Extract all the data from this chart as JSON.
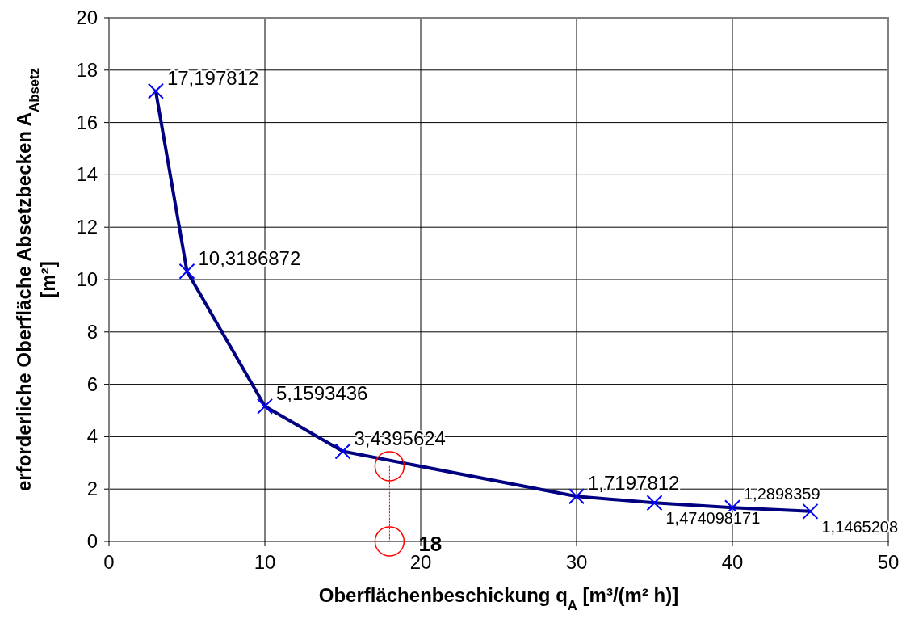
{
  "chart_data": {
    "type": "line",
    "xlabel": "Oberflächenbeschickung q$_{A}$ [m³/(m² h)]",
    "ylabel": "erforderliche Oberfläche Absetzbecken A$_{Absetz}$\n[m²]",
    "xlim": [
      0,
      50
    ],
    "xticks": [
      0,
      10,
      20,
      30,
      40,
      50
    ],
    "ylim": [
      0,
      20
    ],
    "yticks": [
      0,
      2,
      4,
      6,
      8,
      10,
      12,
      14,
      16,
      18,
      20
    ],
    "grid": true,
    "series": [
      {
        "color": "#000080",
        "marker": "cross",
        "line_style": "solid",
        "x": [
          3,
          5,
          10,
          15,
          30,
          35,
          40,
          45
        ],
        "values": [
          17.197812,
          10.3186872,
          5.1593436,
          3.4395624,
          1.7197812,
          1.474098171,
          1.2898359,
          1.1465208
        ],
        "value_labels": [
          "17,197812",
          "10,3186872",
          "5,1593436",
          "3,4395624",
          "1,7197812",
          "1,474098171",
          "1,2898359",
          "1,1465208"
        ]
      },
      {
        "color": "#ff0000",
        "marker": "circle",
        "line_style": "dotted",
        "x": [
          18,
          18
        ],
        "values": [
          2.87,
          0
        ]
      }
    ],
    "annotations": [
      {
        "text": "18",
        "x": 18,
        "y": 0
      }
    ]
  }
}
